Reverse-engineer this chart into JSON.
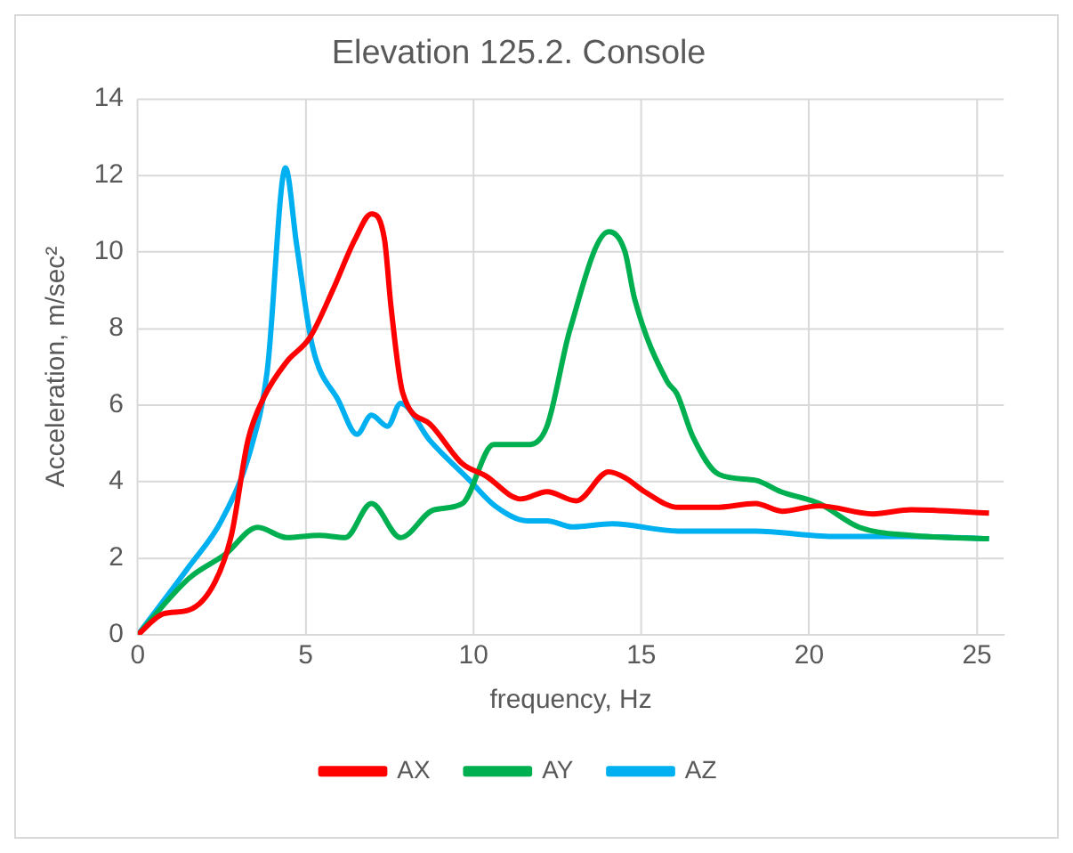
{
  "chart_data": {
    "type": "line",
    "title": "Elevation 125.2. Console",
    "xlabel": "frequency, Hz",
    "ylabel": "Acceleration, m/sec²",
    "xlim": [
      0,
      25.8
    ],
    "xticks": [
      0,
      5,
      10,
      15,
      20,
      25
    ],
    "ylim": [
      0,
      14
    ],
    "yticks": [
      0,
      2,
      4,
      6,
      8,
      10,
      12,
      14
    ],
    "grid": true,
    "legend": "bottom",
    "marker": "none",
    "line_style": "solid",
    "series": [
      {
        "name": "AX",
        "color": "#ff0000",
        "x": [
          0,
          0.76,
          1.53,
          2.3,
          2.79,
          3.28,
          3.76,
          4.44,
          5.12,
          5.8,
          6.47,
          6.96,
          7.35,
          7.54,
          7.89,
          8.7,
          9.67,
          10.35,
          11.41,
          12.19,
          13.06,
          14.03,
          14.51,
          15.1,
          16.1,
          17.2,
          18.4,
          19.2,
          20.3,
          21.9,
          23.04,
          25.36
        ],
        "values": [
          0,
          0.55,
          0.65,
          1.38,
          2.61,
          5.08,
          6.21,
          7.14,
          7.76,
          8.99,
          10.33,
          11.0,
          10.33,
          8.6,
          6.33,
          5.51,
          4.47,
          4.16,
          3.55,
          3.74,
          3.5,
          4.26,
          4.11,
          3.74,
          3.33,
          3.33,
          3.43,
          3.23,
          3.37,
          3.16,
          3.27,
          3.18
        ]
      },
      {
        "name": "AY",
        "color": "#00b050",
        "x": [
          0,
          1.53,
          2.6,
          3.57,
          4.44,
          5.4,
          6.18,
          6.96,
          7.83,
          8.8,
          9.67,
          10.6,
          11.61,
          12.19,
          12.87,
          14.03,
          14.51,
          14.8,
          15.77,
          16.06,
          16.54,
          17.32,
          18.4,
          19.16,
          20.3,
          21.5,
          23.04,
          25.36
        ],
        "values": [
          0,
          1.48,
          2.1,
          2.81,
          2.54,
          2.6,
          2.54,
          3.43,
          2.54,
          3.26,
          3.43,
          4.97,
          4.97,
          5.45,
          7.96,
          10.53,
          10.02,
          8.78,
          6.62,
          6.3,
          5.17,
          4.19,
          4.04,
          3.74,
          3.43,
          2.81,
          2.6,
          2.51
        ]
      },
      {
        "name": "AZ",
        "color": "#00b0f0",
        "x": [
          0,
          1.53,
          2.5,
          3.37,
          3.86,
          4.4,
          4.73,
          5.2,
          5.99,
          6.53,
          6.96,
          7.44,
          7.83,
          8.7,
          9.87,
          10.64,
          11.61,
          12.19,
          12.96,
          14.13,
          16.1,
          18.4,
          20.7,
          23.04,
          25.36
        ],
        "values": [
          0,
          1.79,
          3.0,
          4.87,
          6.93,
          12.2,
          10.2,
          7.55,
          6.1,
          5.24,
          5.74,
          5.45,
          6.05,
          5.08,
          4.05,
          3.37,
          2.98,
          2.98,
          2.82,
          2.9,
          2.71,
          2.71,
          2.57,
          2.57,
          2.51
        ]
      }
    ]
  }
}
